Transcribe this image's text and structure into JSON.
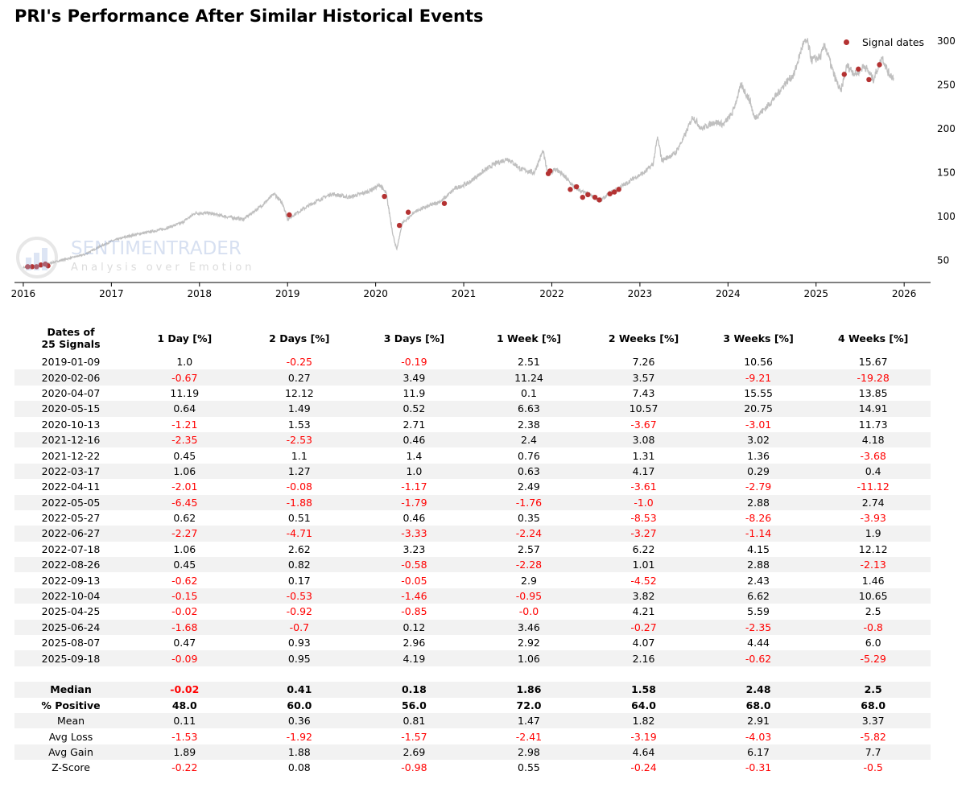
{
  "title": "PRI's Performance After Similar Historical Events",
  "colors": {
    "price_line": "#bfbfbf",
    "signal": "#b43232",
    "negative": "#ff0000",
    "stripe": "#f2f2f2"
  },
  "watermark": {
    "name": "SENTIMENTRADER",
    "tagline": "Analysis over Emotion"
  },
  "chart_data": {
    "type": "line",
    "title": "PRI's Performance After Similar Historical Events",
    "legend": {
      "label": "Signal dates",
      "placement": "top-right"
    },
    "x_range": [
      2015.9,
      2026.3
    ],
    "y_range": [
      25,
      310
    ],
    "x_ticks": [
      2016,
      2017,
      2018,
      2019,
      2020,
      2021,
      2022,
      2023,
      2024,
      2025,
      2026
    ],
    "y_ticks": [
      50,
      100,
      150,
      200,
      250,
      300
    ],
    "y_axis_side": "right",
    "price_anchors": [
      [
        2016.0,
        42
      ],
      [
        2016.15,
        43
      ],
      [
        2016.3,
        47
      ],
      [
        2016.5,
        52
      ],
      [
        2016.7,
        57
      ],
      [
        2016.85,
        65
      ],
      [
        2017.0,
        72
      ],
      [
        2017.2,
        78
      ],
      [
        2017.4,
        82
      ],
      [
        2017.6,
        86
      ],
      [
        2017.8,
        93
      ],
      [
        2017.95,
        104
      ],
      [
        2018.1,
        104
      ],
      [
        2018.3,
        100
      ],
      [
        2018.5,
        97
      ],
      [
        2018.7,
        112
      ],
      [
        2018.85,
        126
      ],
      [
        2018.95,
        114
      ],
      [
        2019.0,
        97
      ],
      [
        2019.1,
        104
      ],
      [
        2019.3,
        116
      ],
      [
        2019.5,
        126
      ],
      [
        2019.7,
        122
      ],
      [
        2019.9,
        128
      ],
      [
        2020.05,
        136
      ],
      [
        2020.12,
        126
      ],
      [
        2020.2,
        78
      ],
      [
        2020.24,
        62
      ],
      [
        2020.3,
        92
      ],
      [
        2020.45,
        106
      ],
      [
        2020.6,
        112
      ],
      [
        2020.75,
        118
      ],
      [
        2020.9,
        132
      ],
      [
        2021.05,
        138
      ],
      [
        2021.2,
        150
      ],
      [
        2021.35,
        160
      ],
      [
        2021.5,
        166
      ],
      [
        2021.65,
        154
      ],
      [
        2021.8,
        150
      ],
      [
        2021.9,
        175
      ],
      [
        2021.95,
        150
      ],
      [
        2022.05,
        154
      ],
      [
        2022.15,
        145
      ],
      [
        2022.25,
        134
      ],
      [
        2022.35,
        128
      ],
      [
        2022.45,
        124
      ],
      [
        2022.55,
        118
      ],
      [
        2022.65,
        126
      ],
      [
        2022.75,
        132
      ],
      [
        2022.85,
        138
      ],
      [
        2022.95,
        145
      ],
      [
        2023.05,
        150
      ],
      [
        2023.15,
        160
      ],
      [
        2023.2,
        190
      ],
      [
        2023.25,
        164
      ],
      [
        2023.4,
        172
      ],
      [
        2023.5,
        190
      ],
      [
        2023.6,
        214
      ],
      [
        2023.7,
        200
      ],
      [
        2023.85,
        208
      ],
      [
        2023.95,
        205
      ],
      [
        2024.05,
        218
      ],
      [
        2024.15,
        250
      ],
      [
        2024.25,
        232
      ],
      [
        2024.3,
        212
      ],
      [
        2024.45,
        226
      ],
      [
        2024.55,
        238
      ],
      [
        2024.65,
        252
      ],
      [
        2024.75,
        262
      ],
      [
        2024.85,
        296
      ],
      [
        2024.9,
        300
      ],
      [
        2024.95,
        278
      ],
      [
        2025.05,
        282
      ],
      [
        2025.1,
        296
      ],
      [
        2025.2,
        262
      ],
      [
        2025.28,
        242
      ],
      [
        2025.35,
        272
      ],
      [
        2025.45,
        262
      ],
      [
        2025.55,
        272
      ],
      [
        2025.65,
        256
      ],
      [
        2025.75,
        282
      ],
      [
        2025.82,
        264
      ],
      [
        2025.88,
        258
      ]
    ],
    "signal_points": [
      [
        2016.05,
        43
      ],
      [
        2016.1,
        43
      ],
      [
        2016.15,
        43
      ],
      [
        2016.2,
        45
      ],
      [
        2016.25,
        46
      ],
      [
        2016.28,
        44
      ],
      [
        2019.02,
        102
      ],
      [
        2020.1,
        123
      ],
      [
        2020.27,
        90
      ],
      [
        2020.37,
        105
      ],
      [
        2020.78,
        115
      ],
      [
        2021.96,
        149
      ],
      [
        2021.98,
        152
      ],
      [
        2022.21,
        131
      ],
      [
        2022.28,
        134
      ],
      [
        2022.35,
        122
      ],
      [
        2022.41,
        125
      ],
      [
        2022.49,
        122
      ],
      [
        2022.54,
        119
      ],
      [
        2022.66,
        126
      ],
      [
        2022.71,
        128
      ],
      [
        2022.76,
        131
      ],
      [
        2025.32,
        262
      ],
      [
        2025.48,
        268
      ],
      [
        2025.6,
        256
      ],
      [
        2025.72,
        273
      ]
    ]
  },
  "table": {
    "columns": [
      "Dates of\n25 Signals",
      "1 Day [%]",
      "2 Days [%]",
      "3 Days [%]",
      "1 Week [%]",
      "2 Weeks [%]",
      "3 Weeks [%]",
      "4 Weeks [%]"
    ],
    "rows": [
      [
        "2019-01-09",
        "1.0",
        "-0.25",
        "-0.19",
        "2.51",
        "7.26",
        "10.56",
        "15.67"
      ],
      [
        "2020-02-06",
        "-0.67",
        "0.27",
        "3.49",
        "11.24",
        "3.57",
        "-9.21",
        "-19.28"
      ],
      [
        "2020-04-07",
        "11.19",
        "12.12",
        "11.9",
        "0.1",
        "7.43",
        "15.55",
        "13.85"
      ],
      [
        "2020-05-15",
        "0.64",
        "1.49",
        "0.52",
        "6.63",
        "10.57",
        "20.75",
        "14.91"
      ],
      [
        "2020-10-13",
        "-1.21",
        "1.53",
        "2.71",
        "2.38",
        "-3.67",
        "-3.01",
        "11.73"
      ],
      [
        "2021-12-16",
        "-2.35",
        "-2.53",
        "0.46",
        "2.4",
        "3.08",
        "3.02",
        "4.18"
      ],
      [
        "2021-12-22",
        "0.45",
        "1.1",
        "1.4",
        "0.76",
        "1.31",
        "1.36",
        "-3.68"
      ],
      [
        "2022-03-17",
        "1.06",
        "1.27",
        "1.0",
        "0.63",
        "4.17",
        "0.29",
        "0.4"
      ],
      [
        "2022-04-11",
        "-2.01",
        "-0.08",
        "-1.17",
        "2.49",
        "-3.61",
        "-2.79",
        "-11.12"
      ],
      [
        "2022-05-05",
        "-6.45",
        "-1.88",
        "-1.79",
        "-1.76",
        "-1.0",
        "2.88",
        "2.74"
      ],
      [
        "2022-05-27",
        "0.62",
        "0.51",
        "0.46",
        "0.35",
        "-8.53",
        "-8.26",
        "-3.93"
      ],
      [
        "2022-06-27",
        "-2.27",
        "-4.71",
        "-3.33",
        "-2.24",
        "-3.27",
        "-1.14",
        "1.9"
      ],
      [
        "2022-07-18",
        "1.06",
        "2.62",
        "3.23",
        "2.57",
        "6.22",
        "4.15",
        "12.12"
      ],
      [
        "2022-08-26",
        "0.45",
        "0.82",
        "-0.58",
        "-2.28",
        "1.01",
        "2.88",
        "-2.13"
      ],
      [
        "2022-09-13",
        "-0.62",
        "0.17",
        "-0.05",
        "2.9",
        "-4.52",
        "2.43",
        "1.46"
      ],
      [
        "2022-10-04",
        "-0.15",
        "-0.53",
        "-1.46",
        "-0.95",
        "3.82",
        "6.62",
        "10.65"
      ],
      [
        "2025-04-25",
        "-0.02",
        "-0.92",
        "-0.85",
        "-0.0",
        "4.21",
        "5.59",
        "2.5"
      ],
      [
        "2025-06-24",
        "-1.68",
        "-0.7",
        "0.12",
        "3.46",
        "-0.27",
        "-2.35",
        "-0.8"
      ],
      [
        "2025-08-07",
        "0.47",
        "0.93",
        "2.96",
        "2.92",
        "4.07",
        "4.44",
        "6.0"
      ],
      [
        "2025-09-18",
        "-0.09",
        "0.95",
        "4.19",
        "1.06",
        "2.16",
        "-0.62",
        "-5.29"
      ]
    ],
    "summary": [
      {
        "label": "Median",
        "bold": true,
        "values": [
          "-0.02",
          "0.41",
          "0.18",
          "1.86",
          "1.58",
          "2.48",
          "2.5"
        ]
      },
      {
        "label": "% Positive",
        "bold": true,
        "values": [
          "48.0",
          "60.0",
          "56.0",
          "72.0",
          "64.0",
          "68.0",
          "68.0"
        ]
      },
      {
        "label": "Mean",
        "bold": false,
        "values": [
          "0.11",
          "0.36",
          "0.81",
          "1.47",
          "1.82",
          "2.91",
          "3.37"
        ]
      },
      {
        "label": "Avg Loss",
        "bold": false,
        "values": [
          "-1.53",
          "-1.92",
          "-1.57",
          "-2.41",
          "-3.19",
          "-4.03",
          "-5.82"
        ]
      },
      {
        "label": "Avg Gain",
        "bold": false,
        "values": [
          "1.89",
          "1.88",
          "2.69",
          "2.98",
          "4.64",
          "6.17",
          "7.7"
        ]
      },
      {
        "label": "Z-Score",
        "bold": false,
        "values": [
          "-0.22",
          "0.08",
          "-0.98",
          "0.55",
          "-0.24",
          "-0.31",
          "-0.5"
        ]
      }
    ]
  }
}
